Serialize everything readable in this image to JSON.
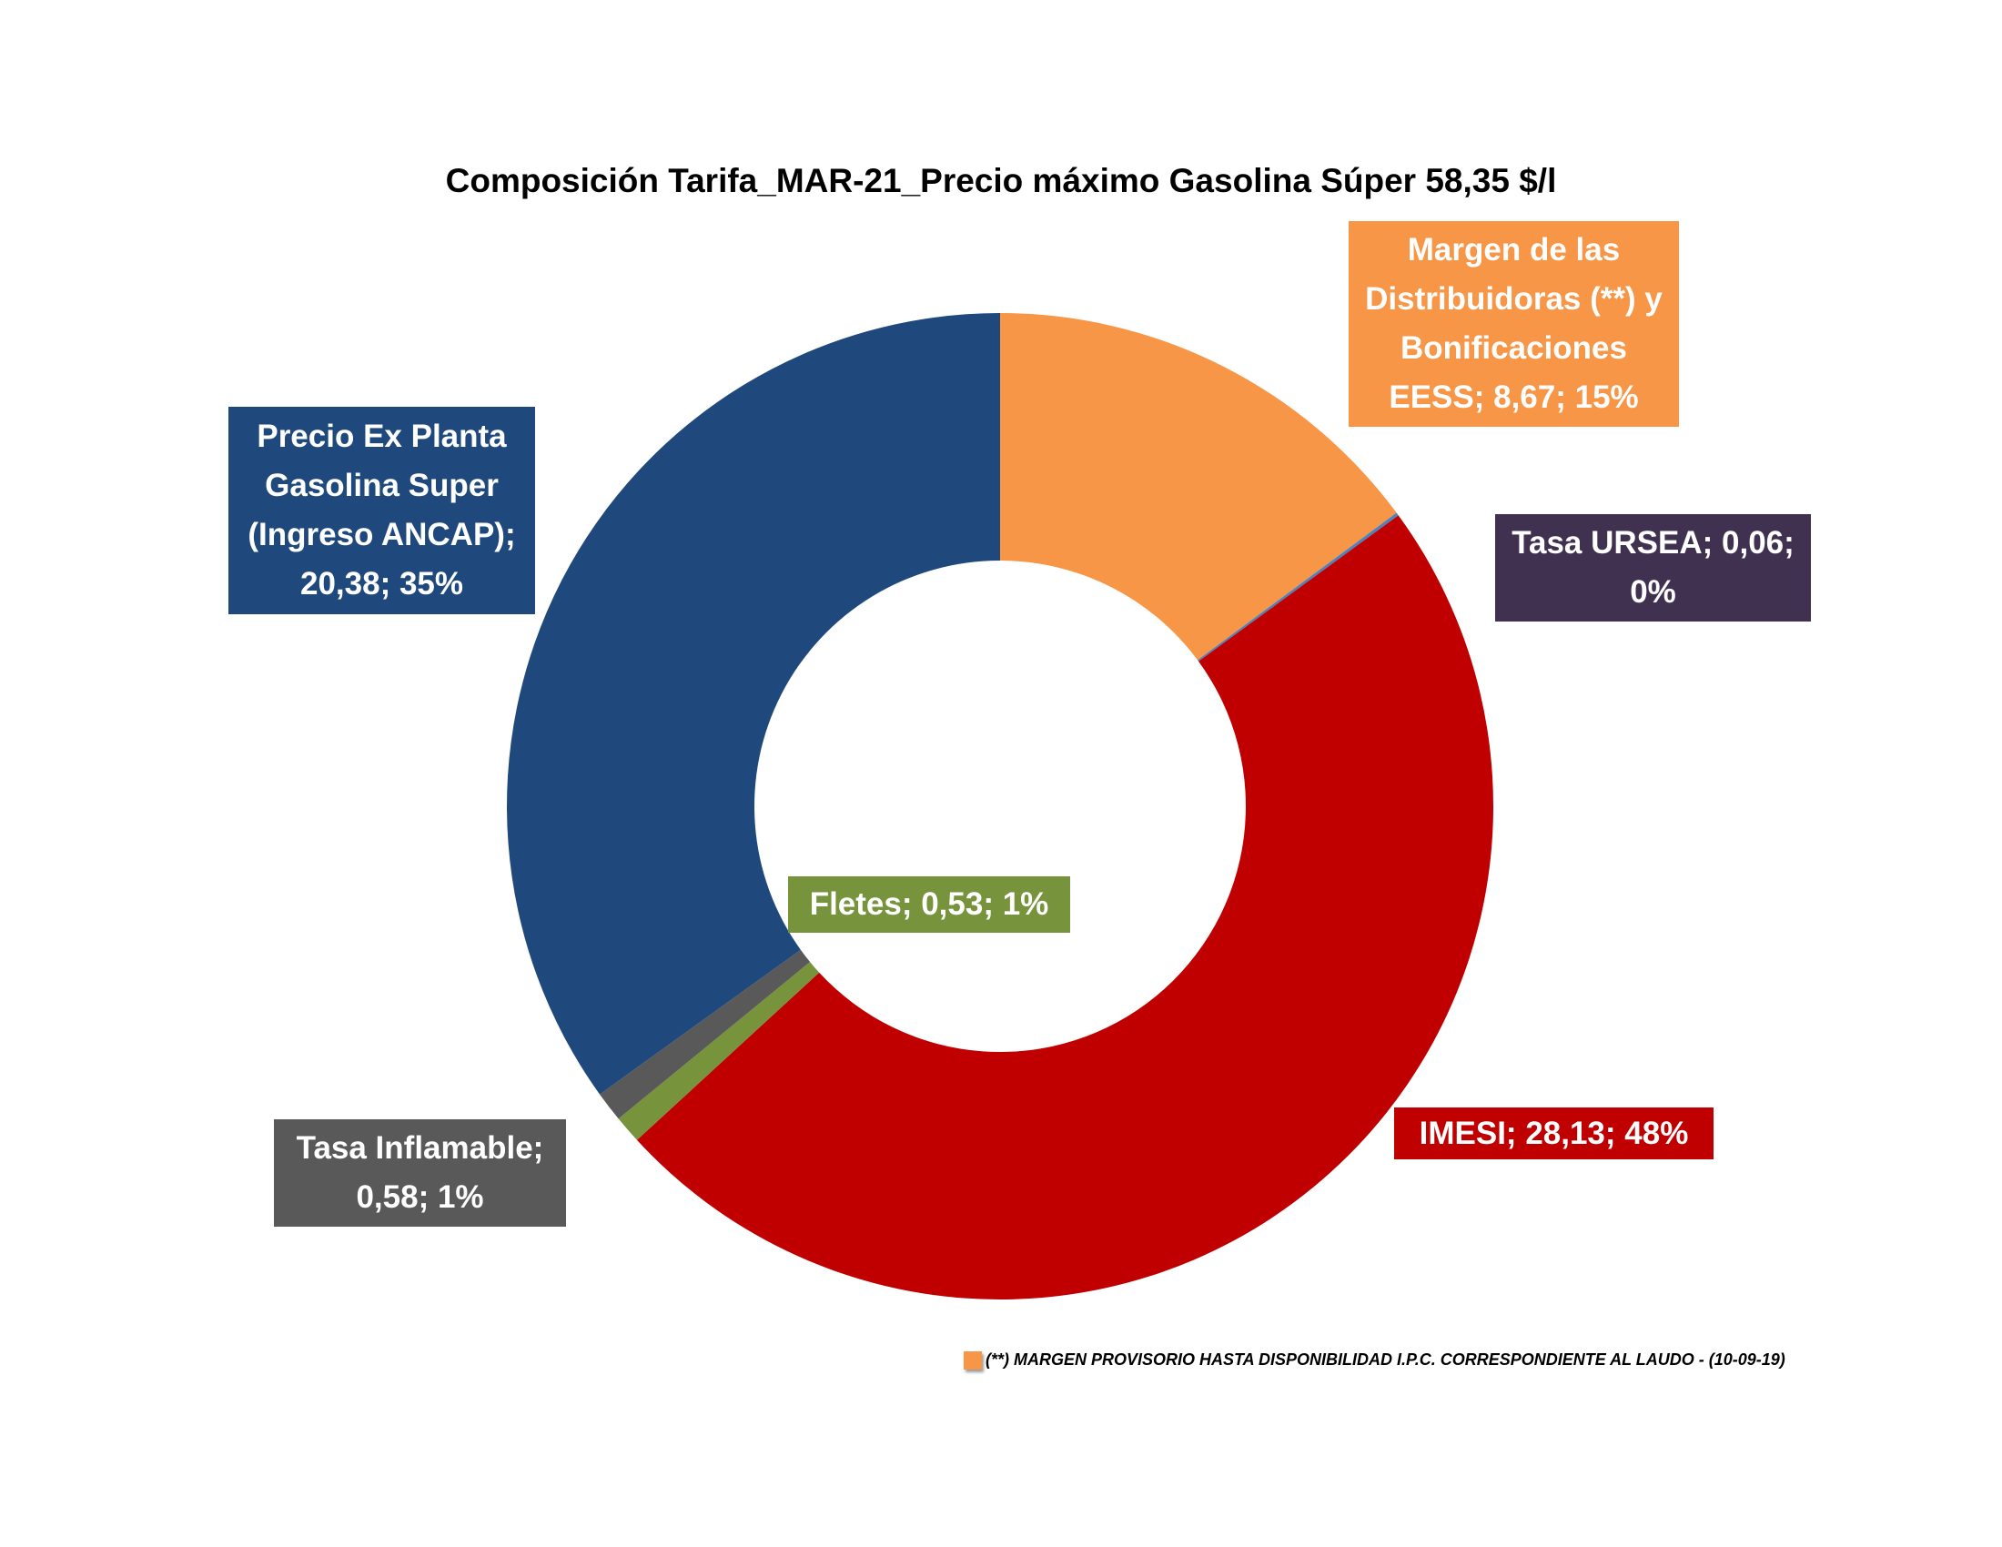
{
  "chart_data": {
    "type": "pie",
    "variant": "donut",
    "title": "Composición Tarifa_MAR-21_Precio máximo Gasolina Súper  58,35 $/l",
    "total": 58.35,
    "slices": [
      {
        "name": "Margen de las Distribuidoras (**) y Bonificaciones EESS",
        "value": 8.67,
        "percent": 15,
        "color": "#f79646",
        "label": "Margen de las Distribuidoras (**) y Bonificaciones EESS; 8,67; 15%"
      },
      {
        "name": "Tasa URSEA",
        "value": 0.06,
        "percent": 0,
        "color": "#4f81bd",
        "label_bg": "#403151",
        "label": "Tasa URSEA; 0,06; 0%"
      },
      {
        "name": "IMESI",
        "value": 28.13,
        "percent": 48,
        "color": "#c00000",
        "label": "IMESI; 28,13; 48%"
      },
      {
        "name": "Fletes",
        "value": 0.53,
        "percent": 1,
        "color": "#77933c",
        "label": "Fletes; 0,53; 1%"
      },
      {
        "name": "Tasa Inflamable",
        "value": 0.58,
        "percent": 1,
        "color": "#595959",
        "label": "Tasa Inflamable; 0,58; 1%"
      },
      {
        "name": "Precio Ex Planta Gasolina Super (Ingreso ANCAP)",
        "value": 20.38,
        "percent": 35,
        "color": "#1f497d",
        "label": "Precio Ex Planta Gasolina Super (Ingreso ANCAP); 20,38; 35%"
      }
    ],
    "footnote": "(**) MARGEN PROVISORIO HASTA DISPONIBILIDAD  I.P.C. CORRESPONDIENTE AL LAUDO - (10-09-19)"
  }
}
